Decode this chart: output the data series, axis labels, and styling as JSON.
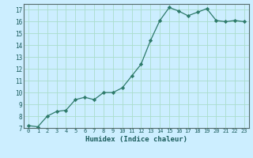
{
  "x": [
    0,
    1,
    2,
    3,
    4,
    5,
    6,
    7,
    8,
    9,
    10,
    11,
    12,
    13,
    14,
    15,
    16,
    17,
    18,
    19,
    20,
    21,
    22,
    23
  ],
  "y": [
    7.2,
    7.1,
    8.0,
    8.4,
    8.5,
    9.4,
    9.6,
    9.4,
    10.0,
    10.0,
    10.4,
    11.4,
    12.4,
    14.4,
    16.1,
    17.2,
    16.9,
    16.5,
    16.8,
    17.1,
    16.1,
    16.0,
    16.1,
    16.0
  ],
  "xlabel": "Humidex (Indice chaleur)",
  "bg_color": "#cceeff",
  "grid_color": "#aaddcc",
  "line_color": "#2d7a6a",
  "marker_color": "#2d7a6a",
  "xlim": [
    -0.5,
    23.5
  ],
  "ylim": [
    7,
    17.5
  ],
  "yticks": [
    7,
    8,
    9,
    10,
    11,
    12,
    13,
    14,
    15,
    16,
    17
  ],
  "xticks": [
    0,
    1,
    2,
    3,
    4,
    5,
    6,
    7,
    8,
    9,
    10,
    11,
    12,
    13,
    14,
    15,
    16,
    17,
    18,
    19,
    20,
    21,
    22,
    23
  ]
}
